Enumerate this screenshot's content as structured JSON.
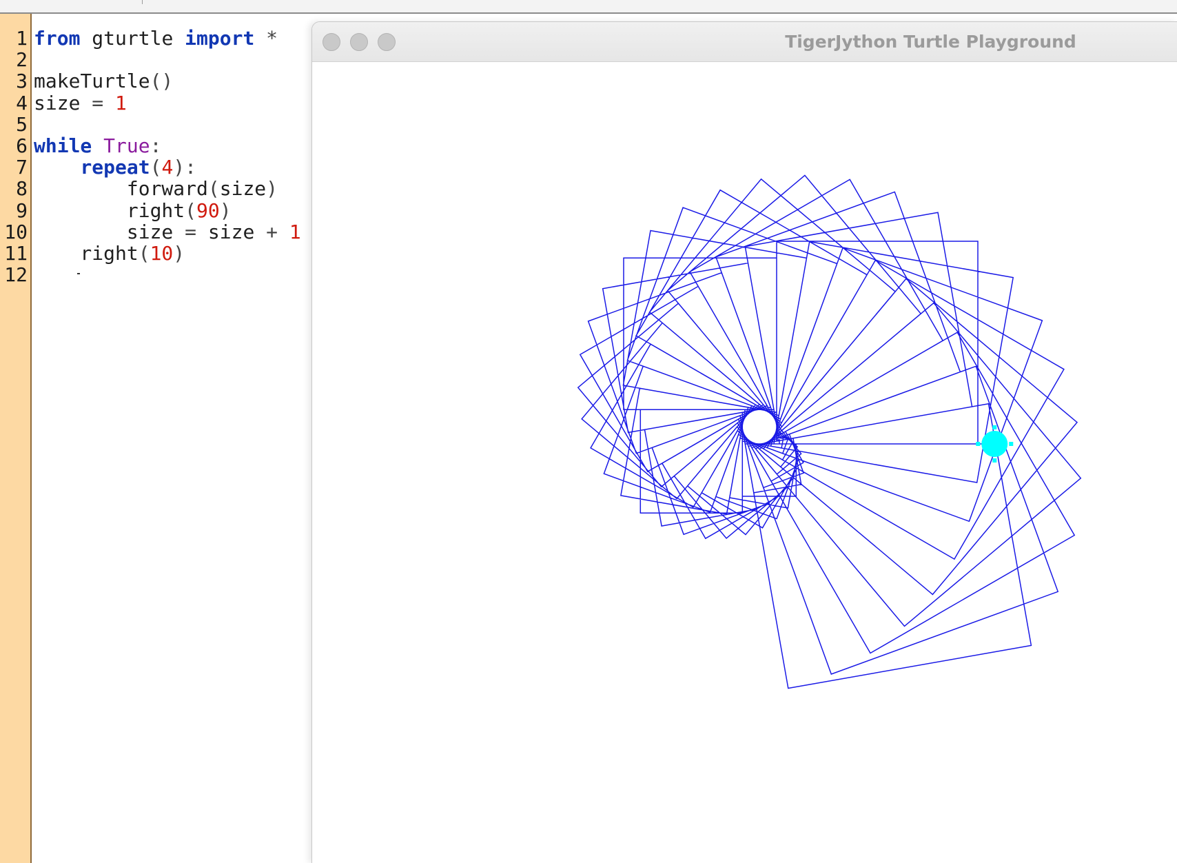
{
  "editor": {
    "line_numbers": [
      "1",
      "2",
      "3",
      "4",
      "5",
      "6",
      "7",
      "8",
      "9",
      "10",
      "11",
      "12"
    ],
    "lines": [
      [
        {
          "t": "from",
          "c": "kw"
        },
        {
          "t": " gturtle ",
          "c": ""
        },
        {
          "t": "import",
          "c": "kw"
        },
        {
          "t": " *",
          "c": "op"
        }
      ],
      [],
      [
        {
          "t": "makeTurtle",
          "c": ""
        },
        {
          "t": "()",
          "c": "op"
        }
      ],
      [
        {
          "t": "size ",
          "c": ""
        },
        {
          "t": "=",
          "c": "op"
        },
        {
          "t": " ",
          "c": ""
        },
        {
          "t": "1",
          "c": "num"
        }
      ],
      [],
      [
        {
          "t": "while",
          "c": "kw"
        },
        {
          "t": " ",
          "c": ""
        },
        {
          "t": "True",
          "c": "kwc"
        },
        {
          "t": ":",
          "c": "op"
        }
      ],
      [
        {
          "t": "    ",
          "c": ""
        },
        {
          "t": "repeat",
          "c": "kw"
        },
        {
          "t": "(",
          "c": "op"
        },
        {
          "t": "4",
          "c": "num"
        },
        {
          "t": "):",
          "c": "op"
        }
      ],
      [
        {
          "t": "        forward",
          "c": ""
        },
        {
          "t": "(",
          "c": "op"
        },
        {
          "t": "size",
          "c": ""
        },
        {
          "t": ")",
          "c": "op"
        }
      ],
      [
        {
          "t": "        right",
          "c": ""
        },
        {
          "t": "(",
          "c": "op"
        },
        {
          "t": "90",
          "c": "num"
        },
        {
          "t": ")",
          "c": "op"
        }
      ],
      [
        {
          "t": "        size ",
          "c": ""
        },
        {
          "t": "=",
          "c": "op"
        },
        {
          "t": " size ",
          "c": ""
        },
        {
          "t": "+",
          "c": "op"
        },
        {
          "t": " ",
          "c": ""
        },
        {
          "t": "1",
          "c": "num"
        }
      ],
      [
        {
          "t": "    right",
          "c": ""
        },
        {
          "t": "(",
          "c": "op"
        },
        {
          "t": "10",
          "c": "num"
        },
        {
          "t": ")",
          "c": "op"
        }
      ],
      []
    ]
  },
  "turtle_window": {
    "title": "TigerJython Turtle Playground",
    "traffic_lights": [
      "close-button",
      "minimize-button",
      "zoom-button"
    ]
  },
  "drawing": {
    "pen_color": "#1a1ae6",
    "turtle_color": "#00ffff",
    "turn_per_loop_deg": 10,
    "start_size": 1,
    "step_increment": 1
  }
}
